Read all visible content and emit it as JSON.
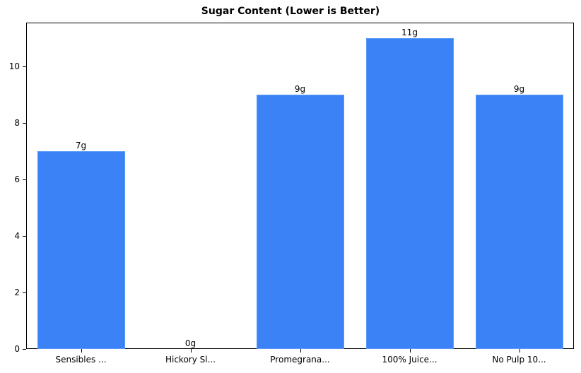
{
  "chart_data": {
    "type": "bar",
    "title": "Sugar Content (Lower is Better)",
    "xlabel": "",
    "ylabel": "",
    "categories": [
      "Sensibles ...",
      "Hickory Sl...",
      "Promegrana...",
      "100% Juice...",
      "No Pulp 10..."
    ],
    "values": [
      7,
      0,
      9,
      11,
      9
    ],
    "value_labels": [
      "7g",
      "0g",
      "9g",
      "11g",
      "9g"
    ],
    "ylim": [
      0,
      11.55
    ],
    "yticks": [
      0,
      2,
      4,
      6,
      8,
      10
    ],
    "grid": false,
    "legend": null,
    "bar_color": "#3b82f6"
  }
}
